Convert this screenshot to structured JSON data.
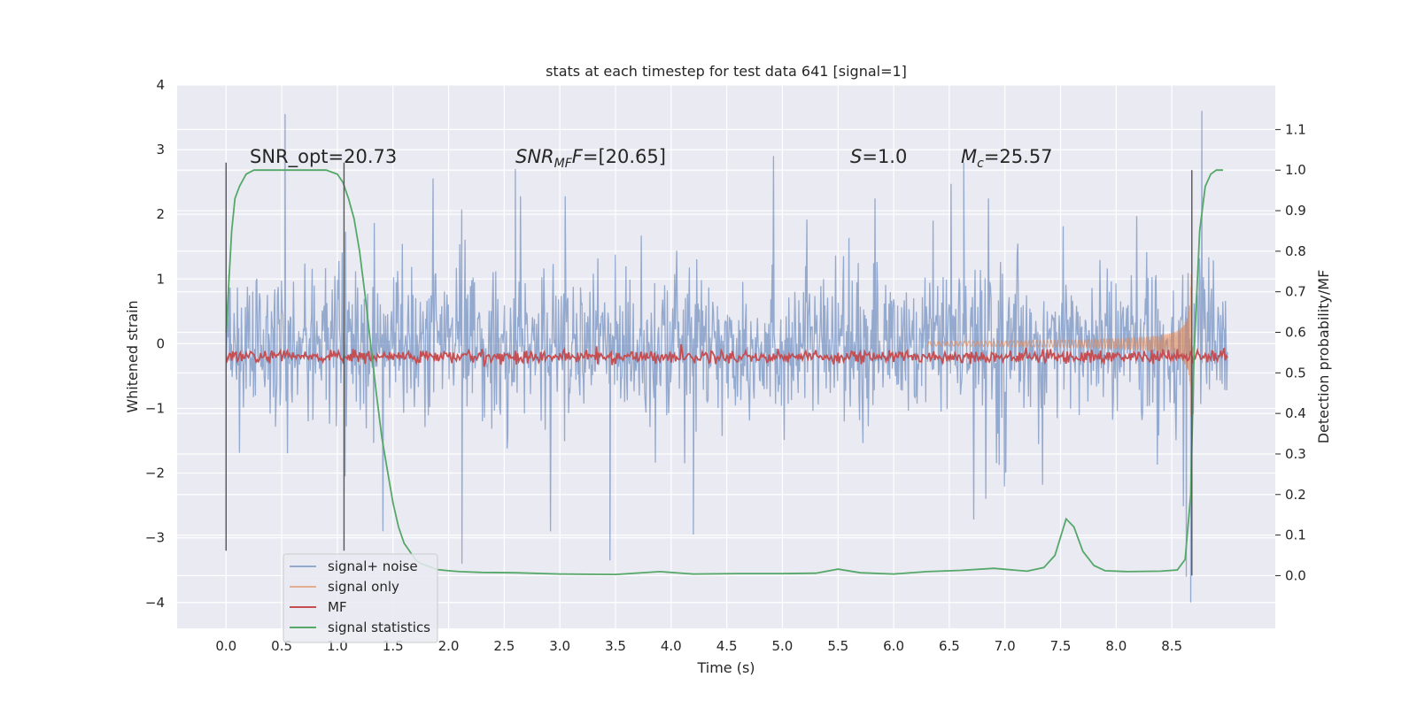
{
  "chart_data": {
    "type": "line",
    "title": "stats at each timestep for test data 641 [signal=1]",
    "xlabel": "Time (s)",
    "ylabel": "Whitened strain",
    "ylabel_right": "Detection probability/MF",
    "xlim": [
      -0.44,
      9.43
    ],
    "ylim": [
      -4.4,
      4.0
    ],
    "ylim_right": [
      -0.13,
      1.21
    ],
    "x_ticks": [
      "0.0",
      "0.5",
      "1.0",
      "1.5",
      "2.0",
      "2.5",
      "3.0",
      "3.5",
      "4.0",
      "4.5",
      "5.0",
      "5.5",
      "6.0",
      "6.5",
      "7.0",
      "7.5",
      "8.0",
      "8.5"
    ],
    "y_ticks": [
      "4",
      "3",
      "2",
      "1",
      "0",
      "−1",
      "−2",
      "−3",
      "−4"
    ],
    "y_right_ticks": [
      "1.1",
      "1.0",
      "0.9",
      "0.8",
      "0.7",
      "0.6",
      "0.5",
      "0.4",
      "0.3",
      "0.2",
      "0.1",
      "0.0"
    ],
    "grid": true,
    "legend_position": "lower-left",
    "annotations": {
      "snr_opt": "SNR_opt=20.73",
      "snr_mf_var": "SNR",
      "snr_mf_sub": "MF",
      "snr_mf_value": "=[20.65]",
      "s_var": "S",
      "s_value": "=1.0",
      "mc_var": "M",
      "mc_sub": "c",
      "mc_value": "=25.57"
    },
    "vertical_lines": [
      {
        "x": 0.0,
        "y_range": [
          -3.2,
          2.8
        ]
      },
      {
        "x": 1.06,
        "y_range": [
          -3.2,
          2.8
        ]
      },
      {
        "x": 8.68,
        "y_range": [
          0.0,
          1.0
        ],
        "axis": "right"
      }
    ],
    "series": [
      {
        "name": "signal+ noise",
        "color": "#4c72b0",
        "axis": "left",
        "description": "whitened noise ~ N(0,0.55), duration 0–9.0 s",
        "t_start": 0.0,
        "t_end": 9.0,
        "envelope": 1.5,
        "spikes": [
          [
            0.53,
            3.55
          ],
          [
            1.07,
            -2.05
          ],
          [
            2.12,
            -3.4
          ],
          [
            2.6,
            2.7
          ],
          [
            3.45,
            -3.35
          ],
          [
            4.2,
            -2.95
          ],
          [
            6.63,
            2.8
          ],
          [
            8.63,
            -3.6
          ],
          [
            8.67,
            -4.0
          ],
          [
            8.77,
            3.6
          ]
        ]
      },
      {
        "name": "signal only",
        "color": "#dd8452",
        "axis": "left",
        "description": "chirp merging at ~8.68 s",
        "t_start": 6.3,
        "t_merge": 8.68,
        "peak_amplitude": 3.6
      },
      {
        "name": "MF",
        "color": "#c44e52",
        "axis": "right",
        "t_start": 0.0,
        "t_end": 9.0,
        "mean": 0.54,
        "noise": 0.008
      },
      {
        "name": "signal statistics",
        "color": "#55a868",
        "axis": "right",
        "x": [
          0.0,
          0.05,
          0.08,
          0.12,
          0.18,
          0.25,
          0.35,
          0.5,
          0.7,
          0.9,
          0.95,
          1.0,
          1.05,
          1.1,
          1.15,
          1.2,
          1.25,
          1.3,
          1.35,
          1.4,
          1.45,
          1.5,
          1.55,
          1.6,
          1.65,
          1.7,
          1.75,
          1.8,
          1.85,
          1.9,
          2.0,
          2.1,
          2.3,
          2.6,
          3.0,
          3.5,
          3.9,
          4.2,
          4.6,
          5.0,
          5.3,
          5.5,
          5.7,
          6.0,
          6.3,
          6.6,
          6.9,
          7.2,
          7.35,
          7.45,
          7.55,
          7.62,
          7.7,
          7.8,
          7.9,
          8.1,
          8.4,
          8.55,
          8.62,
          8.67,
          8.7,
          8.75,
          8.8,
          8.85,
          8.9,
          8.96
        ],
        "values": [
          0.6,
          0.85,
          0.93,
          0.96,
          0.99,
          1.0,
          1.0,
          1.0,
          1.0,
          1.0,
          0.995,
          0.99,
          0.97,
          0.93,
          0.88,
          0.8,
          0.69,
          0.57,
          0.45,
          0.34,
          0.26,
          0.18,
          0.12,
          0.08,
          0.06,
          0.04,
          0.03,
          0.025,
          0.02,
          0.015,
          0.012,
          0.01,
          0.008,
          0.007,
          0.004,
          0.003,
          0.01,
          0.004,
          0.005,
          0.005,
          0.006,
          0.016,
          0.007,
          0.004,
          0.01,
          0.013,
          0.018,
          0.011,
          0.02,
          0.05,
          0.14,
          0.12,
          0.06,
          0.025,
          0.012,
          0.01,
          0.011,
          0.014,
          0.04,
          0.2,
          0.55,
          0.85,
          0.96,
          0.99,
          1.0,
          1.0
        ]
      }
    ]
  }
}
